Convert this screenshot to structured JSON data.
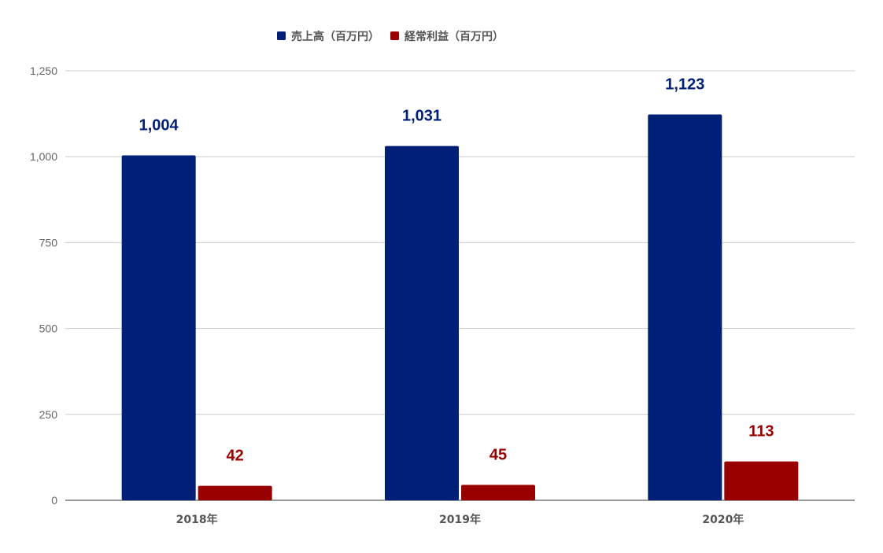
{
  "chart_data": {
    "type": "bar",
    "categories": [
      "2018年",
      "2019年",
      "2020年"
    ],
    "series": [
      {
        "name": "売上高（百万円）",
        "values": [
          1004,
          1031,
          1123
        ],
        "labels": [
          "1,004",
          "1,031",
          "1,123"
        ],
        "color": "#002077"
      },
      {
        "name": "経常利益（百万円）",
        "values": [
          42,
          45,
          113
        ],
        "labels": [
          "42",
          "45",
          "113"
        ],
        "color": "#990000"
      }
    ],
    "ylim": [
      0,
      1250
    ],
    "yticks": [
      0,
      250,
      500,
      750,
      1000,
      1250
    ],
    "ytick_labels": [
      "0",
      "250",
      "500",
      "750",
      "1,000",
      "1,250"
    ],
    "grid": true,
    "legend_position": "top-center",
    "title": "",
    "xlabel": "",
    "ylabel": ""
  }
}
